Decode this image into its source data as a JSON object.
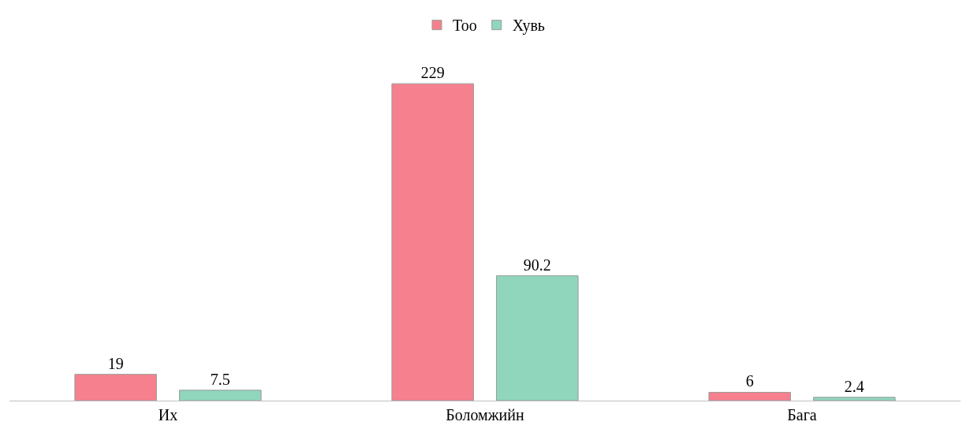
{
  "chart_data": {
    "type": "bar",
    "categories": [
      "Их",
      "Боломжийн",
      "Бага"
    ],
    "series": [
      {
        "name": "Тоо",
        "color": "#f7808e",
        "values": [
          19,
          229,
          6
        ]
      },
      {
        "name": "Хувь",
        "color": "#8fd6bd",
        "values": [
          7.5,
          90.2,
          2.4
        ]
      }
    ],
    "data_labels": true,
    "legend": "top"
  }
}
